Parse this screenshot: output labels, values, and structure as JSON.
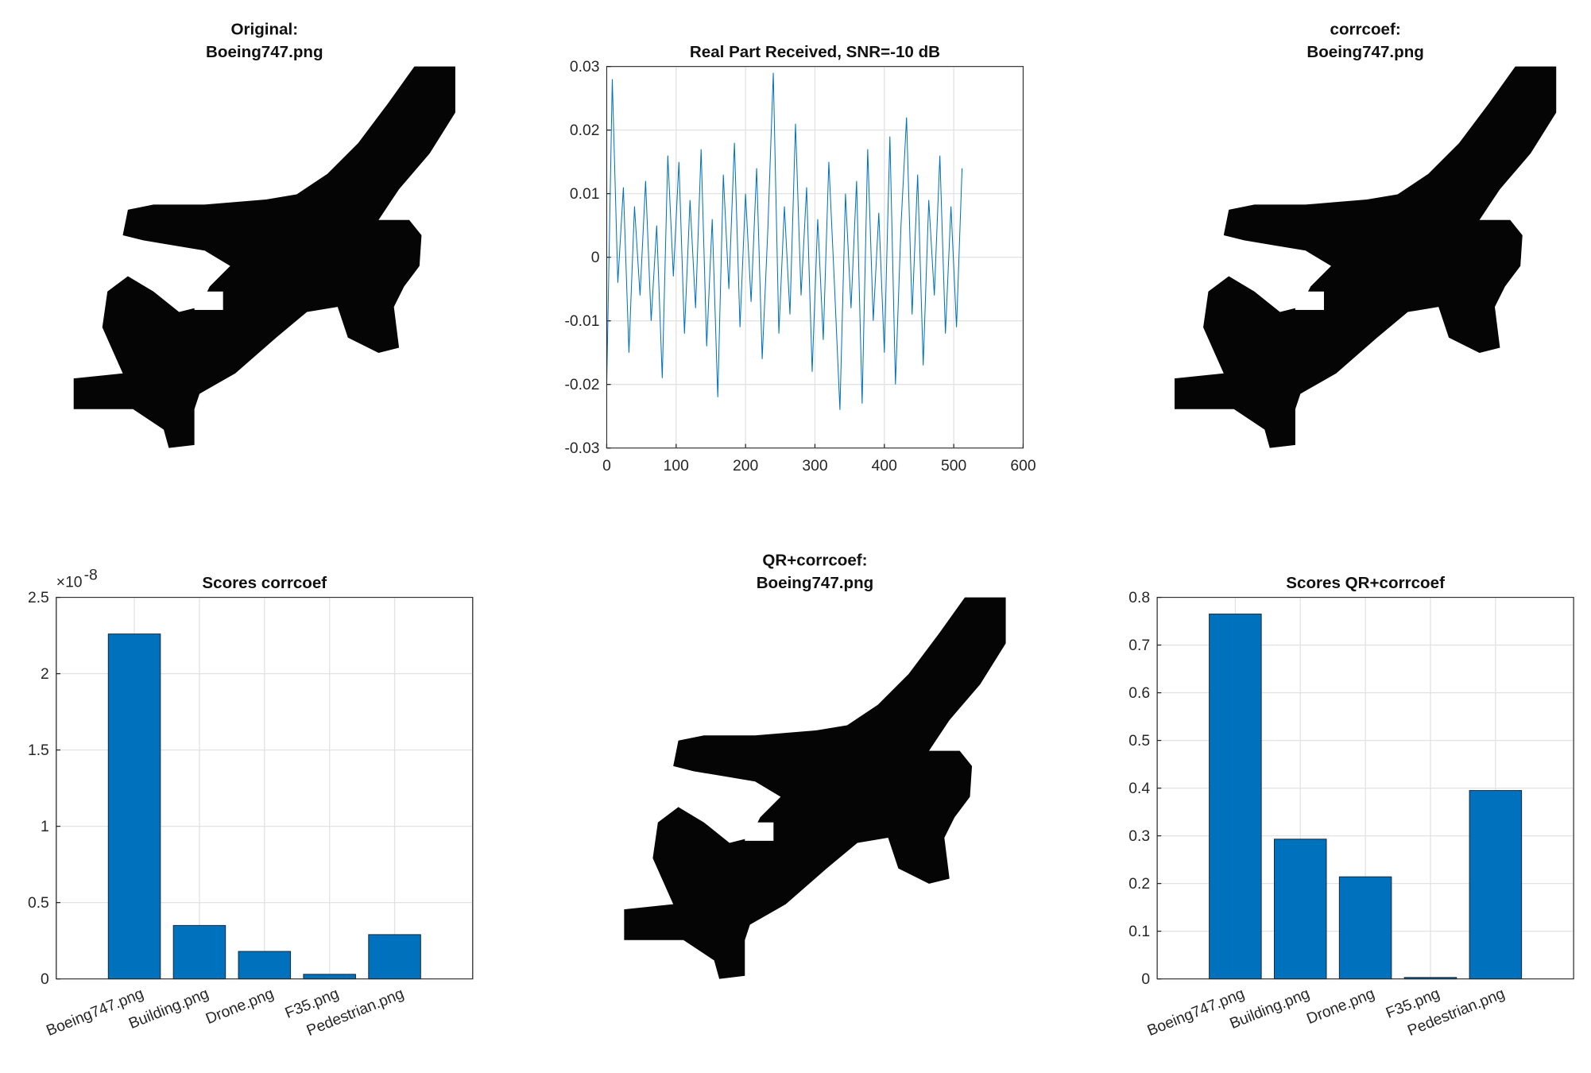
{
  "chart_data": [
    {
      "type": "image",
      "title": [
        "Original:",
        "Boeing747.png"
      ]
    },
    {
      "type": "line",
      "title": [
        "Real Part Received, SNR=-10 dB"
      ],
      "grid": true,
      "xlim": [
        0,
        600
      ],
      "xticks": [
        0,
        100,
        200,
        300,
        400,
        500,
        600
      ],
      "ylim": [
        -0.03,
        0.03
      ],
      "yticks": [
        -0.03,
        -0.02,
        -0.01,
        0,
        0.01,
        0.02,
        0.03
      ],
      "series": [
        {
          "color": "#0072bd",
          "x": [
            0,
            8,
            16,
            24,
            32,
            40,
            48,
            56,
            64,
            72,
            80,
            88,
            96,
            104,
            112,
            120,
            128,
            136,
            144,
            152,
            160,
            168,
            176,
            184,
            192,
            200,
            208,
            216,
            224,
            232,
            240,
            248,
            256,
            264,
            272,
            280,
            288,
            296,
            304,
            312,
            320,
            328,
            336,
            344,
            352,
            360,
            368,
            376,
            384,
            392,
            400,
            408,
            416,
            424,
            432,
            440,
            448,
            456,
            464,
            472,
            480,
            488,
            496,
            504,
            512
          ],
          "values": [
            -0.02,
            0.028,
            -0.004,
            0.011,
            -0.015,
            0.008,
            -0.006,
            0.012,
            -0.01,
            0.005,
            -0.019,
            0.016,
            -0.003,
            0.015,
            -0.012,
            0.009,
            -0.008,
            0.017,
            -0.014,
            0.006,
            -0.022,
            0.013,
            -0.005,
            0.018,
            -0.011,
            0.01,
            -0.007,
            0.014,
            -0.016,
            0.004,
            0.029,
            -0.012,
            0.008,
            -0.009,
            0.021,
            -0.006,
            0.011,
            -0.018,
            0.006,
            -0.013,
            0.015,
            -0.004,
            -0.024,
            0.01,
            -0.008,
            0.012,
            -0.023,
            0.017,
            -0.01,
            0.007,
            -0.015,
            0.019,
            -0.02,
            0.005,
            0.022,
            -0.009,
            0.013,
            -0.017,
            0.009,
            -0.006,
            0.016,
            -0.012,
            0.008,
            -0.011,
            0.014
          ]
        }
      ]
    },
    {
      "type": "image",
      "title": [
        "corrcoef:",
        "Boeing747.png"
      ]
    },
    {
      "type": "bar",
      "title": [
        "Scores corrcoef"
      ],
      "grid": true,
      "color": "#0072bd",
      "y_multiplier": {
        "base": "×10",
        "exponent": "-8"
      },
      "categories": [
        "Boeing747.png",
        "Building.png",
        "Drone.png",
        "F35.png",
        "Pedestrian.png"
      ],
      "values": [
        2.26,
        0.35,
        0.18,
        0.03,
        0.29
      ],
      "ylim": [
        0,
        2.5
      ],
      "yticks": [
        0,
        0.5,
        1,
        1.5,
        2,
        2.5
      ]
    },
    {
      "type": "image",
      "title": [
        "QR+corrcoef:",
        "Boeing747.png"
      ]
    },
    {
      "type": "bar",
      "title": [
        "Scores QR+corrcoef"
      ],
      "grid": true,
      "color": "#0072bd",
      "categories": [
        "Boeing747.png",
        "Building.png",
        "Drone.png",
        "F35.png",
        "Pedestrian.png"
      ],
      "values": [
        0.765,
        0.293,
        0.214,
        0.003,
        0.395
      ],
      "ylim": [
        0,
        0.8
      ],
      "yticks": [
        0,
        0.1,
        0.2,
        0.3,
        0.4,
        0.5,
        0.6,
        0.7,
        0.8
      ]
    }
  ]
}
